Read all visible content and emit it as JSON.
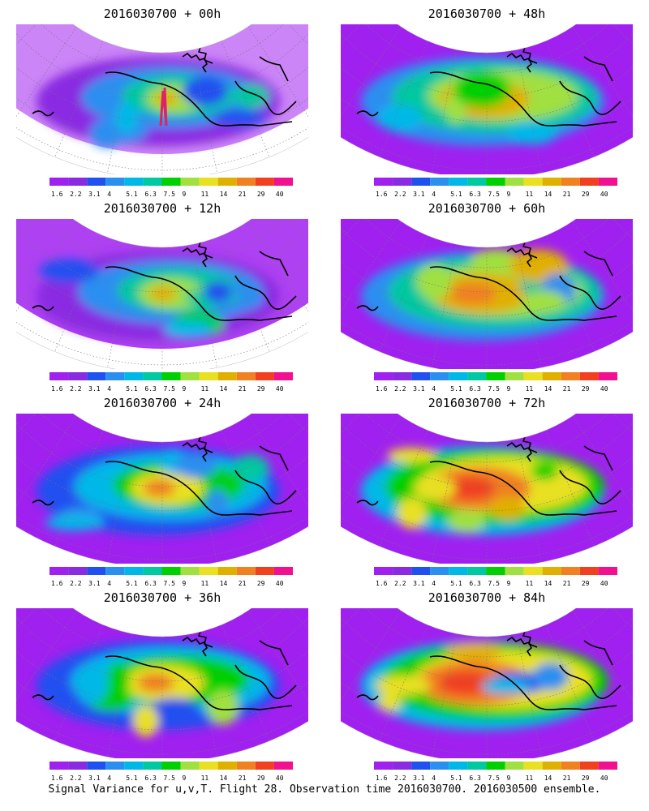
{
  "caption": "Signal Variance for u,v,T. Flight 28. Observation time 2016030700. 2016030500 ensemble.",
  "colorbar": {
    "labels": [
      "1.6",
      "2.2",
      "3.1",
      "4",
      "5.1",
      "6.3",
      "7.5",
      "9",
      "11",
      "14",
      "21",
      "29",
      "40"
    ],
    "colors": [
      "#a020f0",
      "#8a2be2",
      "#2050f0",
      "#2a8ff0",
      "#00b8e8",
      "#00c8a0",
      "#00d000",
      "#a0e040",
      "#e8e020",
      "#e0b000",
      "#f08020",
      "#f04020",
      "#f01090"
    ]
  },
  "panels": [
    {
      "title": "2016030700 + 00h",
      "lead_hours": 0
    },
    {
      "title": "2016030700 + 48h",
      "lead_hours": 48
    },
    {
      "title": "2016030700 + 12h",
      "lead_hours": 12
    },
    {
      "title": "2016030700 + 60h",
      "lead_hours": 60
    },
    {
      "title": "2016030700 + 24h",
      "lead_hours": 24
    },
    {
      "title": "2016030700 + 72h",
      "lead_hours": 72
    },
    {
      "title": "2016030700 + 36h",
      "lead_hours": 36
    },
    {
      "title": "2016030700 + 84h",
      "lead_hours": 84
    }
  ],
  "flight_track_color": "#e0206a",
  "coastline_color": "#000000"
}
